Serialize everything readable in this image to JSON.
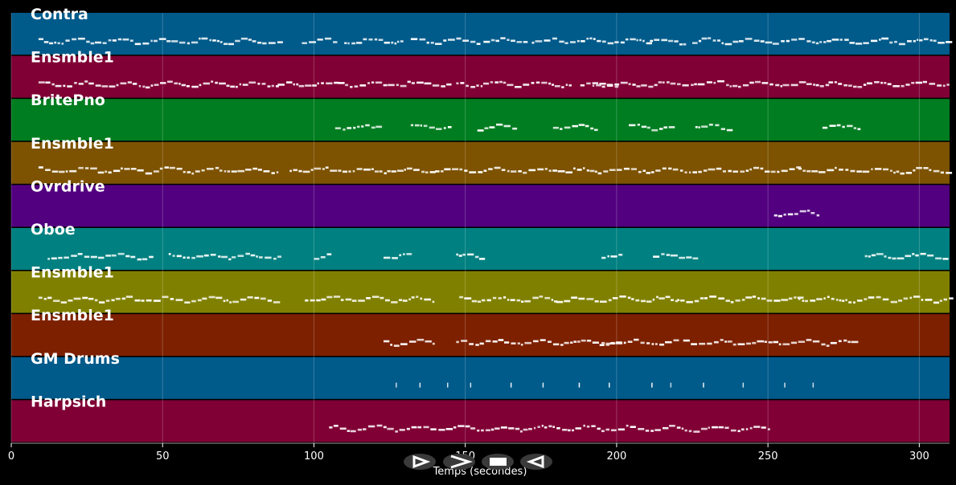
{
  "chart_data": {
    "type": "piano-roll",
    "xlabel": "Temps (secondes)",
    "xlim": [
      0,
      310
    ],
    "xticks": [
      0,
      50,
      100,
      150,
      200,
      250,
      300
    ],
    "grid": true,
    "note_color": "#ffffff",
    "tracks": [
      {
        "name": "Contra",
        "color": "#005a8a",
        "segments": [
          [
            9,
            88
          ],
          [
            96,
            108
          ],
          [
            110,
            130
          ],
          [
            132,
            155
          ],
          [
            156,
            170
          ],
          [
            172,
            210
          ],
          [
            211,
            222
          ],
          [
            225,
            255
          ],
          [
            256,
            310
          ]
        ]
      },
      {
        "name": "Ensmble1",
        "color": "#800035",
        "segments": [
          [
            9,
            88
          ],
          [
            88,
            108
          ],
          [
            108,
            145
          ],
          [
            147,
            185
          ],
          [
            188,
            200
          ],
          [
            192,
            230
          ],
          [
            232,
            270
          ],
          [
            270,
            310
          ]
        ]
      },
      {
        "name": "BritePno",
        "color": "#007d20",
        "segments": [
          [
            107,
            122
          ],
          [
            132,
            145
          ],
          [
            154,
            166
          ],
          [
            179,
            193
          ],
          [
            204,
            218
          ],
          [
            226,
            238
          ],
          [
            268,
            280
          ]
        ]
      },
      {
        "name": "Ensmble1",
        "color": "#7d5200",
        "segments": [
          [
            9,
            88
          ],
          [
            92,
            140
          ],
          [
            140,
            200
          ],
          [
            200,
            260
          ],
          [
            260,
            310
          ]
        ]
      },
      {
        "name": "Ovrdrive",
        "color": "#520080",
        "segments": [
          [
            252,
            267
          ]
        ]
      },
      {
        "name": "Oboe",
        "color": "#008080",
        "segments": [
          [
            12,
            47
          ],
          [
            52,
            88
          ],
          [
            100,
            106
          ],
          [
            123,
            131
          ],
          [
            147,
            155
          ],
          [
            195,
            202
          ],
          [
            212,
            227
          ],
          [
            282,
            310
          ]
        ]
      },
      {
        "name": "Ensmble1",
        "color": "#808000",
        "segments": [
          [
            9,
            88
          ],
          [
            97,
            140
          ],
          [
            148,
            180
          ],
          [
            180,
            220
          ],
          [
            220,
            260
          ],
          [
            260,
            310
          ]
        ]
      },
      {
        "name": "Ensmble1",
        "color": "#7d2000",
        "segments": [
          [
            123,
            140
          ],
          [
            147,
            200
          ],
          [
            195,
            220
          ],
          [
            222,
            278
          ]
        ]
      },
      {
        "name": "GM Drums",
        "color": "#005a8a",
        "segments": [
          [
            127,
            275
          ]
        ]
      },
      {
        "name": "Harpsich",
        "color": "#800035",
        "segments": [
          [
            105,
            250
          ]
        ]
      }
    ]
  },
  "controls": {
    "play_icon": "play-icon",
    "forward_icon": "forward-icon",
    "stop_icon": "stop-icon",
    "back_icon": "back-icon"
  }
}
